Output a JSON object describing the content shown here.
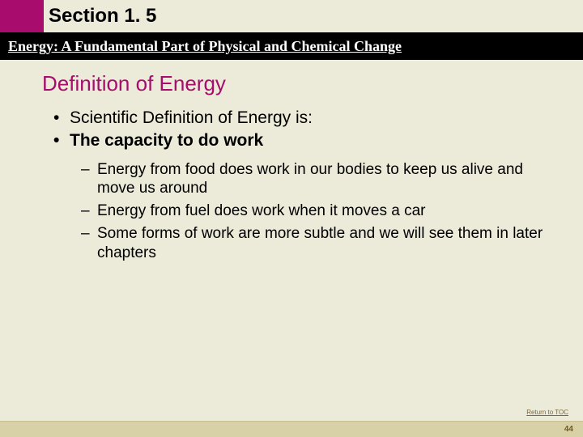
{
  "colors": {
    "accent": "#a80c6c",
    "background": "#ecead9",
    "subtitle_bg": "#000000",
    "subtitle_text": "#ffffff",
    "footer_bg": "#d8d1a8",
    "body_text": "#000000"
  },
  "header": {
    "section_label": "Section 1. 5",
    "subtitle": "Energy: A Fundamental Part of Physical and Chemical Change"
  },
  "slide": {
    "title": "Definition of Energy",
    "bullets": [
      {
        "text": "Scientific Definition of Energy is:",
        "bold": false
      },
      {
        "text": "The capacity to do work",
        "bold": true
      }
    ],
    "sub_bullets": [
      "Energy from food does work in our bodies to keep us alive and move us around",
      "Energy from fuel does work when it moves a car",
      "Some forms of work are more subtle and we will see them in later chapters"
    ]
  },
  "footer": {
    "return_link": "Return to TOC",
    "page_number": "44"
  }
}
